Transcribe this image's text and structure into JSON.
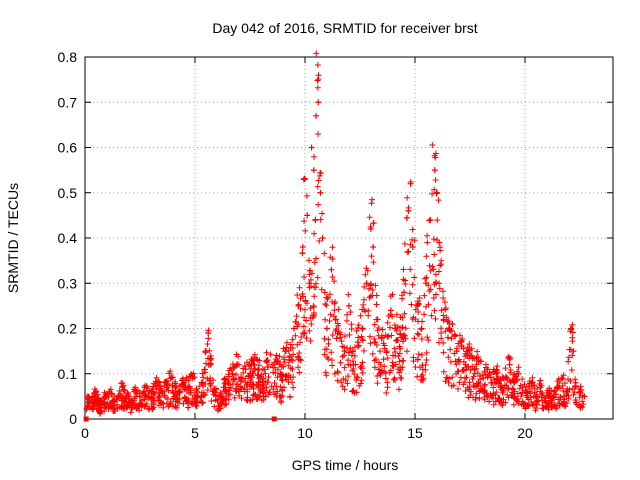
{
  "chart_data": {
    "type": "scatter",
    "title": "Day 042 of 2016, SRMTID for receiver brst",
    "xlabel": "GPS time / hours",
    "ylabel": "SRMTID / TECUs",
    "xlim": [
      0,
      24
    ],
    "ylim": [
      0,
      0.8
    ],
    "grid": true,
    "marker": "+",
    "marker_color": "#ff0000",
    "x_ticks": [
      0,
      5,
      10,
      15,
      20
    ],
    "x_tick_labels": [
      "0",
      "5",
      "10",
      "15",
      "20"
    ],
    "y_ticks": [
      0,
      0.1,
      0.2,
      0.3,
      0.4,
      0.5,
      0.6,
      0.7,
      0.8
    ],
    "y_tick_labels": [
      "0",
      "0.1",
      "0.2",
      "0.3",
      "0.4",
      "0.5",
      "0.6",
      "0.7",
      "0.8"
    ],
    "points": [
      [
        0.1,
        0.05
      ],
      [
        0.3,
        0.04
      ],
      [
        0.5,
        0.06
      ],
      [
        0.7,
        0.03
      ],
      [
        0.9,
        0.05
      ],
      [
        1.1,
        0.06
      ],
      [
        1.3,
        0.04
      ],
      [
        1.5,
        0.05
      ],
      [
        1.7,
        0.07
      ],
      [
        1.9,
        0.05
      ],
      [
        2.1,
        0.04
      ],
      [
        2.3,
        0.06
      ],
      [
        2.5,
        0.05
      ],
      [
        2.7,
        0.07
      ],
      [
        2.9,
        0.05
      ],
      [
        3.1,
        0.06
      ],
      [
        3.3,
        0.08
      ],
      [
        3.5,
        0.06
      ],
      [
        3.7,
        0.07
      ],
      [
        3.9,
        0.09
      ],
      [
        4.1,
        0.07
      ],
      [
        4.3,
        0.06
      ],
      [
        4.5,
        0.08
      ],
      [
        4.7,
        0.07
      ],
      [
        4.9,
        0.09
      ],
      [
        5.1,
        0.06
      ],
      [
        5.3,
        0.08
      ],
      [
        5.5,
        0.15
      ],
      [
        5.6,
        0.19
      ],
      [
        5.7,
        0.12
      ],
      [
        5.9,
        0.06
      ],
      [
        6.1,
        0.05
      ],
      [
        6.3,
        0.07
      ],
      [
        6.5,
        0.08
      ],
      [
        6.7,
        0.1
      ],
      [
        6.9,
        0.12
      ],
      [
        7.1,
        0.09
      ],
      [
        7.3,
        0.11
      ],
      [
        7.5,
        0.1
      ],
      [
        7.7,
        0.12
      ],
      [
        7.9,
        0.11
      ],
      [
        8.1,
        0.09
      ],
      [
        8.3,
        0.13
      ],
      [
        8.5,
        0.12
      ],
      [
        8.7,
        0.14
      ],
      [
        8.9,
        0.1
      ],
      [
        9.1,
        0.15
      ],
      [
        9.3,
        0.13
      ],
      [
        9.5,
        0.2
      ],
      [
        9.7,
        0.25
      ],
      [
        9.9,
        0.38
      ],
      [
        10.0,
        0.53
      ],
      [
        10.1,
        0.45
      ],
      [
        10.2,
        0.3
      ],
      [
        10.3,
        0.6
      ],
      [
        10.4,
        0.55
      ],
      [
        10.5,
        0.67
      ],
      [
        10.6,
        0.7
      ],
      [
        10.7,
        0.5
      ],
      [
        10.8,
        0.4
      ],
      [
        10.9,
        0.28
      ],
      [
        11.0,
        0.2
      ],
      [
        11.2,
        0.33
      ],
      [
        11.4,
        0.22
      ],
      [
        11.6,
        0.18
      ],
      [
        11.8,
        0.15
      ],
      [
        12.0,
        0.25
      ],
      [
        12.2,
        0.12
      ],
      [
        12.4,
        0.17
      ],
      [
        12.6,
        0.2
      ],
      [
        12.8,
        0.3
      ],
      [
        13.0,
        0.42
      ],
      [
        13.1,
        0.38
      ],
      [
        13.3,
        0.22
      ],
      [
        13.5,
        0.18
      ],
      [
        13.7,
        0.15
      ],
      [
        13.9,
        0.24
      ],
      [
        14.1,
        0.2
      ],
      [
        14.3,
        0.16
      ],
      [
        14.5,
        0.28
      ],
      [
        14.7,
        0.46
      ],
      [
        14.8,
        0.52
      ],
      [
        14.9,
        0.38
      ],
      [
        15.1,
        0.25
      ],
      [
        15.3,
        0.2
      ],
      [
        15.5,
        0.3
      ],
      [
        15.7,
        0.44
      ],
      [
        15.9,
        0.55
      ],
      [
        16.0,
        0.5
      ],
      [
        16.1,
        0.39
      ],
      [
        16.3,
        0.22
      ],
      [
        16.5,
        0.18
      ],
      [
        16.7,
        0.21
      ],
      [
        16.9,
        0.15
      ],
      [
        17.1,
        0.17
      ],
      [
        17.3,
        0.12
      ],
      [
        17.5,
        0.14
      ],
      [
        17.7,
        0.11
      ],
      [
        17.9,
        0.13
      ],
      [
        18.1,
        0.09
      ],
      [
        18.3,
        0.11
      ],
      [
        18.5,
        0.08
      ],
      [
        18.7,
        0.1
      ],
      [
        18.9,
        0.07
      ],
      [
        19.1,
        0.09
      ],
      [
        19.3,
        0.12
      ],
      [
        19.5,
        0.08
      ],
      [
        19.7,
        0.1
      ],
      [
        19.9,
        0.07
      ],
      [
        20.1,
        0.06
      ],
      [
        20.3,
        0.08
      ],
      [
        20.5,
        0.05
      ],
      [
        20.7,
        0.07
      ],
      [
        20.9,
        0.04
      ],
      [
        21.1,
        0.06
      ],
      [
        21.3,
        0.05
      ],
      [
        21.5,
        0.07
      ],
      [
        21.7,
        0.09
      ],
      [
        21.9,
        0.06
      ],
      [
        22.1,
        0.2
      ],
      [
        22.2,
        0.15
      ],
      [
        22.3,
        0.08
      ],
      [
        22.5,
        0.06
      ],
      [
        22.7,
        0.05
      ]
    ],
    "outliers": [
      [
        0.05,
        0.0
      ],
      [
        8.6,
        0.0
      ]
    ]
  }
}
